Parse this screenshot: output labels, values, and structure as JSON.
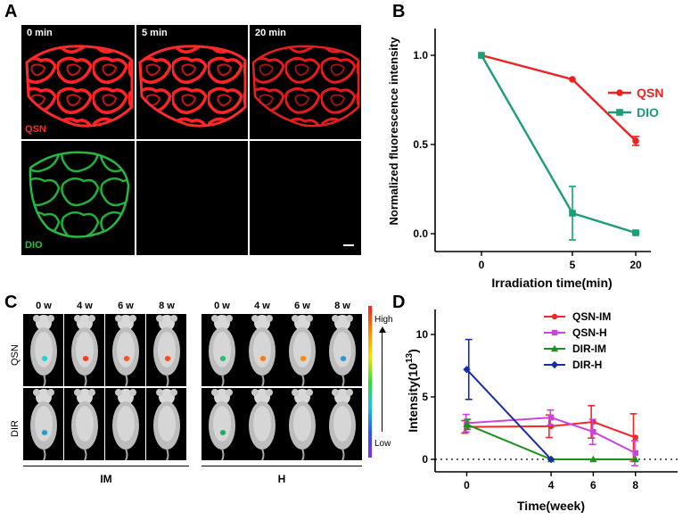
{
  "panel_a": {
    "letter": "A",
    "timepoints": [
      "0 min",
      "5 min",
      "20 min"
    ],
    "channels": {
      "top": "QSN",
      "bottom": "DIO"
    },
    "colors": {
      "qsn": "#ff2020",
      "dio": "#22c040"
    }
  },
  "panel_b": {
    "letter": "B",
    "chart_data": {
      "type": "line",
      "x": [
        "0",
        "5",
        "20"
      ],
      "xlabel": "Irradiation time(min)",
      "ylabel": "Normalized fluorescence intensity",
      "yticks": [
        "0.0",
        "0.5",
        "1.0"
      ],
      "ylim": [
        -0.1,
        1.15
      ],
      "legend_position": "right",
      "series": [
        {
          "name": "QSN",
          "color": "#ee2222",
          "marker": "circle",
          "values": [
            1.0,
            0.865,
            0.52
          ],
          "errors": [
            0.0,
            0.0,
            0.025
          ]
        },
        {
          "name": "DIO",
          "color": "#1a9e78",
          "marker": "square",
          "values": [
            1.0,
            0.115,
            0.005
          ],
          "errors": [
            0.0,
            0.15,
            0.005
          ]
        }
      ]
    }
  },
  "panel_c": {
    "letter": "C",
    "timepoints": [
      "0 w",
      "4 w",
      "6 w",
      "8 w",
      "0 w",
      "4 w",
      "6 w",
      "8 w"
    ],
    "rows": [
      "QSN",
      "DIR"
    ],
    "groups": [
      "IM",
      "H"
    ],
    "colorbar": {
      "high": "High",
      "low": "Low"
    }
  },
  "panel_d": {
    "letter": "D",
    "chart_data": {
      "type": "line",
      "x": [
        0,
        4,
        6,
        8
      ],
      "xlabel": "Time(week)",
      "ylabel_main": "Intensity(10",
      "ylabel_sup": "13",
      "ylabel_end": ")",
      "yticks": [
        0,
        5,
        10
      ],
      "ylim": [
        -1,
        12
      ],
      "xlim": [
        -1.5,
        10
      ],
      "legend_position": "top-right",
      "series": [
        {
          "name": "QSN-IM",
          "color": "#ee2a2a",
          "marker": "circle",
          "values": [
            2.6,
            2.65,
            3.0,
            1.75
          ],
          "errors": [
            0.5,
            0.9,
            1.3,
            1.9
          ]
        },
        {
          "name": "QSN-H",
          "color": "#cc44dd",
          "marker": "square",
          "values": [
            2.9,
            3.35,
            2.2,
            0.5
          ],
          "errors": [
            0.7,
            0.6,
            1.0,
            1.0
          ]
        },
        {
          "name": "DIR-IM",
          "color": "#1f8f1f",
          "marker": "triangle",
          "values": [
            2.8,
            0.0,
            0.0,
            0.0
          ],
          "errors": [
            0.4,
            0,
            0,
            0
          ]
        },
        {
          "name": "DIR-H",
          "color": "#1a2aa8",
          "marker": "diamond",
          "values": [
            7.2,
            0.0,
            null,
            null
          ],
          "errors": [
            2.4,
            0,
            0,
            0
          ]
        }
      ]
    }
  }
}
